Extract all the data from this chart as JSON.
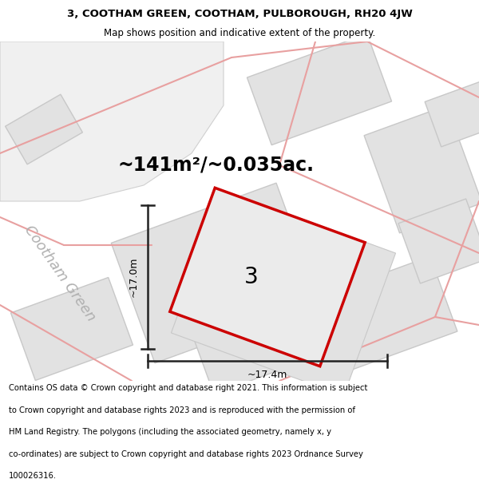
{
  "title_line1": "3, COOTHAM GREEN, COOTHAM, PULBOROUGH, RH20 4JW",
  "title_line2": "Map shows position and indicative extent of the property.",
  "area_text": "~141m²/~0.035ac.",
  "dim_vertical": "~17.0m",
  "dim_horizontal": "~17.4m",
  "plot_number": "3",
  "road_label": "Cootham Green",
  "copyright_text": "Contains OS data © Crown copyright and database right 2021. This information is subject to Crown copyright and database rights 2023 and is reproduced with the permission of HM Land Registry. The polygons (including the associated geometry, namely x, y co-ordinates) are subject to Crown copyright and database rights 2023 Ordnance Survey 100026316.",
  "bg_color": "#f5f5f5",
  "parcel_fill": "#e2e2e2",
  "parcel_edge": "#c8c8c8",
  "road_line_color": "#e8a0a0",
  "highlight_fill": "#ebebeb",
  "highlight_edge": "#cc0000",
  "dim_line_color": "#222222",
  "title_fontsize": 9.5,
  "subtitle_fontsize": 8.5,
  "area_fontsize": 17,
  "dim_fontsize": 9,
  "plot_label_fontsize": 20,
  "road_label_fontsize": 13,
  "copyright_fontsize": 7.2
}
